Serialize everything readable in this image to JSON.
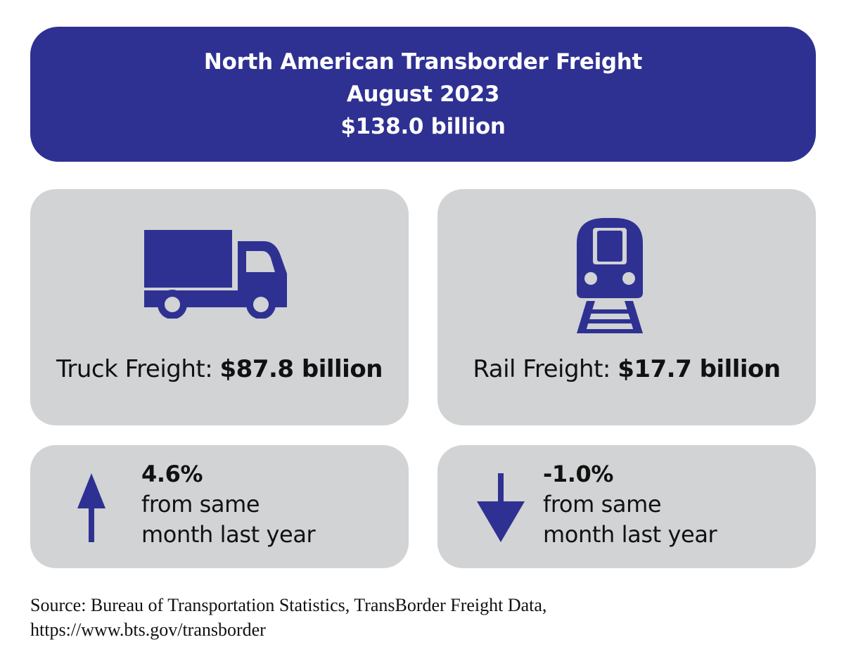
{
  "header": {
    "title": "North American Transborder Freight",
    "period": "August 2023",
    "total": "$138.0 billion"
  },
  "truck": {
    "icon": "truck-icon",
    "label": "Truck Freight: ",
    "value": "$87.8 billion",
    "change": "4.6%",
    "change_desc_line1": "from same",
    "change_desc_line2": "month last year",
    "direction": "up"
  },
  "rail": {
    "icon": "train-icon",
    "label": "Rail Freight: ",
    "value": "$17.7 billion",
    "change": "-1.0%",
    "change_desc_line1": "from same",
    "change_desc_line2": "month last year",
    "direction": "down"
  },
  "source": {
    "line1": "Source: Bureau of Transportation Statistics, TransBorder Freight Data,",
    "line2": "https://www.bts.gov/transborder"
  },
  "colors": {
    "accent": "#2e3192",
    "card": "#d1d3d4"
  }
}
